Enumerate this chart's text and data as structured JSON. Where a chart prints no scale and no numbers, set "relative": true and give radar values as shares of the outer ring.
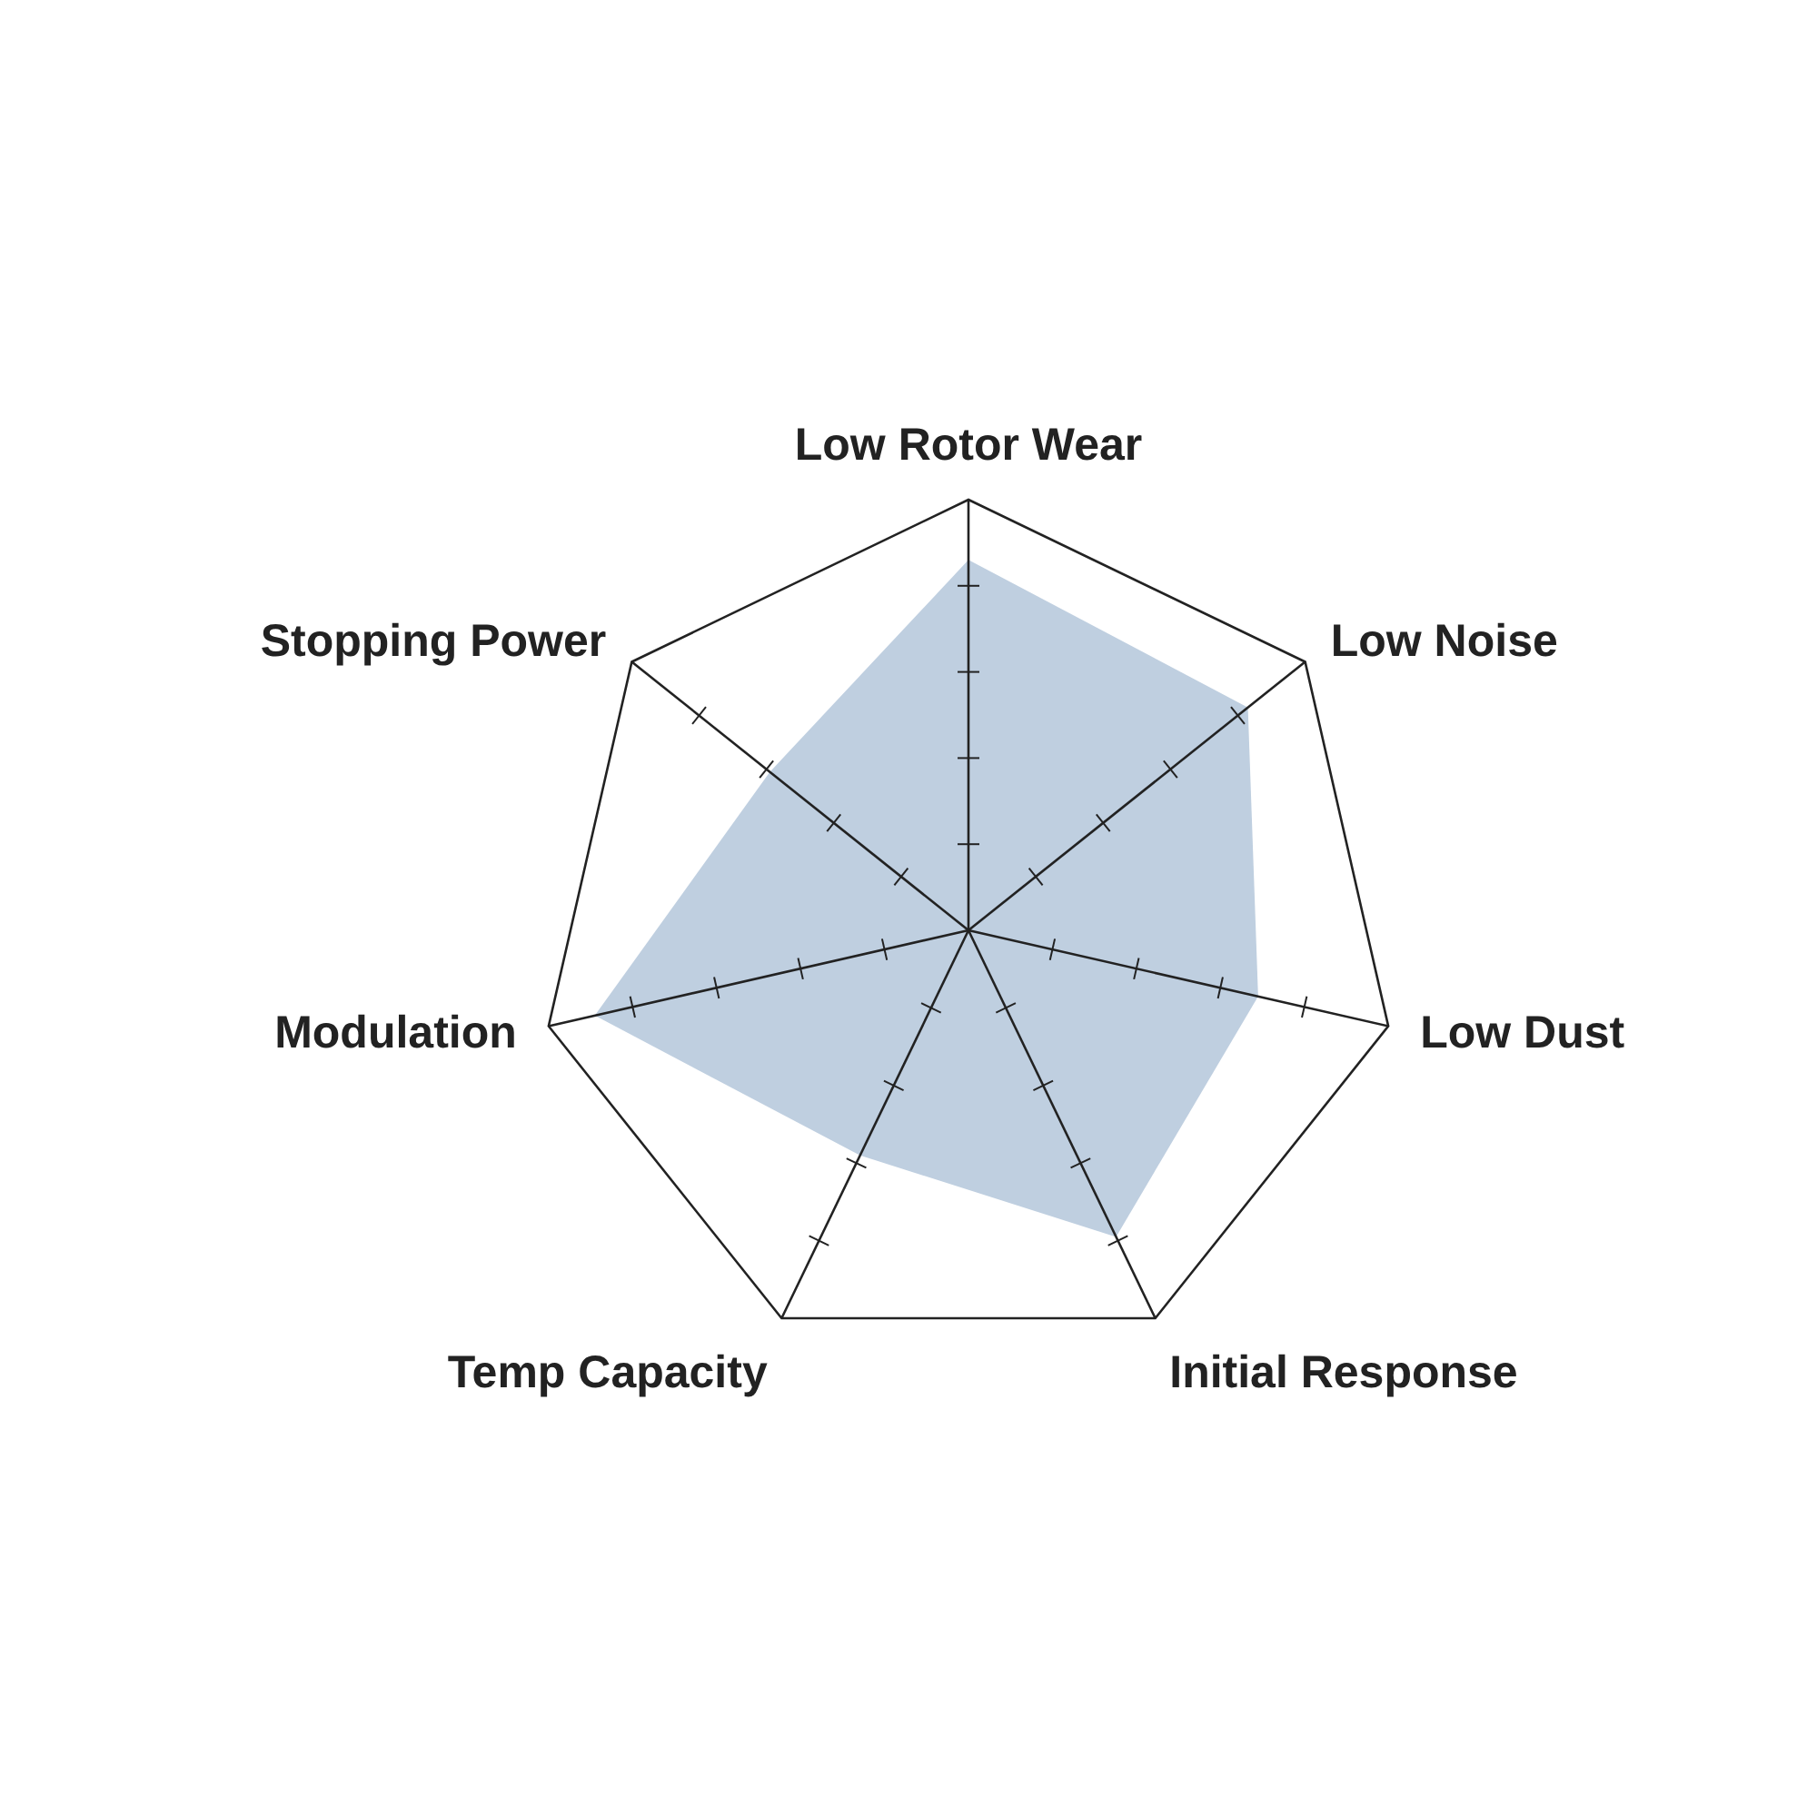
{
  "chart_data": {
    "type": "radar",
    "relative": true,
    "categories": [
      "Low Rotor Wear",
      "Low Noise",
      "Low Dust",
      "Initial Response",
      "Temp Capacity",
      "Modulation",
      "Stopping Power"
    ],
    "series": [
      {
        "color": "#bfcfe0",
        "values": [
          0.86,
          0.83,
          0.69,
          0.79,
          0.58,
          0.89,
          0.59
        ]
      }
    ]
  }
}
